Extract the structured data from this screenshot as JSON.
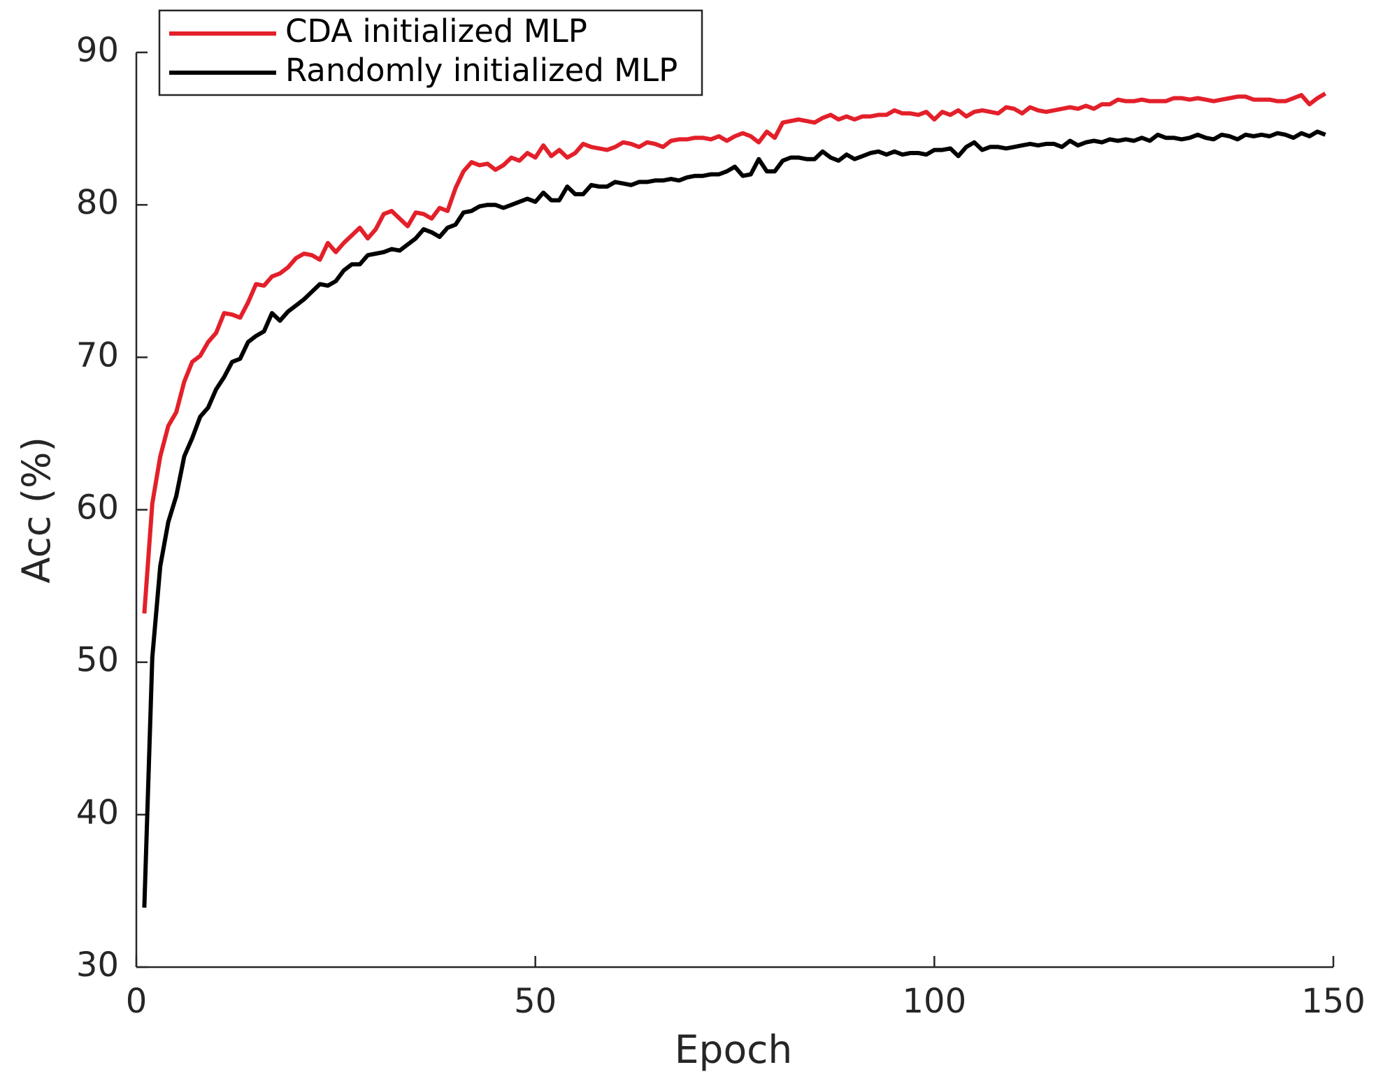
{
  "chart_data": {
    "type": "line",
    "x_label": "Epoch",
    "y_label": "Acc (%)",
    "xlim": [
      0,
      150
    ],
    "xticks": [
      0,
      50,
      100,
      150
    ],
    "ylim": [
      30,
      90
    ],
    "yticks": [
      30,
      40,
      50,
      60,
      70,
      80,
      90
    ],
    "legend": "top-left",
    "x": [
      1,
      2,
      3,
      4,
      5,
      6,
      7,
      8,
      9,
      10,
      11,
      12,
      13,
      14,
      15,
      16,
      17,
      18,
      19,
      20,
      21,
      22,
      23,
      24,
      25,
      26,
      27,
      28,
      29,
      30,
      31,
      32,
      33,
      34,
      35,
      36,
      37,
      38,
      39,
      40,
      41,
      42,
      43,
      44,
      45,
      46,
      47,
      48,
      49,
      50,
      51,
      52,
      53,
      54,
      55,
      56,
      57,
      58,
      59,
      60,
      61,
      62,
      63,
      64,
      65,
      66,
      67,
      68,
      69,
      70,
      71,
      72,
      73,
      74,
      75,
      76,
      77,
      78,
      79,
      80,
      81,
      82,
      83,
      84,
      85,
      86,
      87,
      88,
      89,
      90,
      91,
      92,
      93,
      94,
      95,
      96,
      97,
      98,
      99,
      100,
      101,
      102,
      103,
      104,
      105,
      106,
      107,
      108,
      109,
      110,
      111,
      112,
      113,
      114,
      115,
      116,
      117,
      118,
      119,
      120,
      121,
      122,
      123,
      124,
      125,
      126,
      127,
      128,
      129,
      130,
      131,
      132,
      133,
      134,
      135,
      136,
      137,
      138,
      139,
      140,
      141,
      142,
      143,
      144,
      145,
      146,
      147,
      148,
      149
    ],
    "series": [
      {
        "name": "CDA initialized MLP",
        "color": "#e3202a",
        "values": [
          53.2,
          60.4,
          63.5,
          65.5,
          66.4,
          68.4,
          69.7,
          70.1,
          71.0,
          71.6,
          72.9,
          72.8,
          72.6,
          73.6,
          74.8,
          74.7,
          75.3,
          75.5,
          75.9,
          76.5,
          76.8,
          76.7,
          76.4,
          77.5,
          76.9,
          77.5,
          78.0,
          78.5,
          77.8,
          78.4,
          79.4,
          79.6,
          79.1,
          78.6,
          79.5,
          79.4,
          79.1,
          79.8,
          79.6,
          81.1,
          82.2,
          82.8,
          82.6,
          82.7,
          82.3,
          82.6,
          83.1,
          82.9,
          83.4,
          83.1,
          83.9,
          83.2,
          83.6,
          83.1,
          83.4,
          84.0,
          83.8,
          83.7,
          83.6,
          83.8,
          84.1,
          84.0,
          83.8,
          84.1,
          84.0,
          83.8,
          84.2,
          84.3,
          84.3,
          84.4,
          84.4,
          84.3,
          84.5,
          84.2,
          84.5,
          84.7,
          84.5,
          84.1,
          84.8,
          84.4,
          85.4,
          85.5,
          85.6,
          85.5,
          85.4,
          85.7,
          85.9,
          85.6,
          85.8,
          85.6,
          85.8,
          85.8,
          85.9,
          85.9,
          86.2,
          86.0,
          86.0,
          85.9,
          86.1,
          85.6,
          86.1,
          85.9,
          86.2,
          85.8,
          86.1,
          86.2,
          86.1,
          86.0,
          86.4,
          86.3,
          86.0,
          86.4,
          86.2,
          86.1,
          86.2,
          86.3,
          86.4,
          86.3,
          86.5,
          86.3,
          86.6,
          86.6,
          86.9,
          86.8,
          86.8,
          86.9,
          86.8,
          86.8,
          86.8,
          87.0,
          87.0,
          86.9,
          87.0,
          86.9,
          86.8,
          86.9,
          87.0,
          87.1,
          87.1,
          86.9,
          86.9,
          86.9,
          86.8,
          86.8,
          87.0,
          87.2,
          86.6,
          87.0,
          87.3
        ]
      },
      {
        "name": "Randomly initialized MLP",
        "color": "#000000",
        "values": [
          33.9,
          50.3,
          56.3,
          59.2,
          60.9,
          63.5,
          64.7,
          66.1,
          66.7,
          67.9,
          68.7,
          69.7,
          69.9,
          71.0,
          71.4,
          71.7,
          72.9,
          72.4,
          73.0,
          73.4,
          73.8,
          74.3,
          74.8,
          74.7,
          75.0,
          75.7,
          76.1,
          76.1,
          76.7,
          76.8,
          76.9,
          77.1,
          77.0,
          77.4,
          77.8,
          78.4,
          78.2,
          77.9,
          78.5,
          78.7,
          79.5,
          79.6,
          79.9,
          80.0,
          80.0,
          79.8,
          80.0,
          80.2,
          80.4,
          80.2,
          80.8,
          80.3,
          80.3,
          81.2,
          80.7,
          80.7,
          81.3,
          81.2,
          81.2,
          81.5,
          81.4,
          81.3,
          81.5,
          81.5,
          81.6,
          81.6,
          81.7,
          81.6,
          81.8,
          81.9,
          81.9,
          82.0,
          82.0,
          82.2,
          82.5,
          81.9,
          82.0,
          83.0,
          82.2,
          82.2,
          82.9,
          83.1,
          83.1,
          83.0,
          83.0,
          83.5,
          83.1,
          82.9,
          83.3,
          83.0,
          83.2,
          83.4,
          83.5,
          83.3,
          83.5,
          83.3,
          83.4,
          83.4,
          83.3,
          83.6,
          83.6,
          83.7,
          83.2,
          83.8,
          84.1,
          83.6,
          83.8,
          83.8,
          83.7,
          83.8,
          83.9,
          84.0,
          83.9,
          84.0,
          84.0,
          83.8,
          84.2,
          83.9,
          84.1,
          84.2,
          84.1,
          84.3,
          84.2,
          84.3,
          84.2,
          84.4,
          84.2,
          84.6,
          84.4,
          84.4,
          84.3,
          84.4,
          84.6,
          84.4,
          84.3,
          84.6,
          84.5,
          84.3,
          84.6,
          84.5,
          84.6,
          84.5,
          84.7,
          84.6,
          84.4,
          84.7,
          84.5,
          84.8,
          84.6
        ]
      }
    ]
  }
}
